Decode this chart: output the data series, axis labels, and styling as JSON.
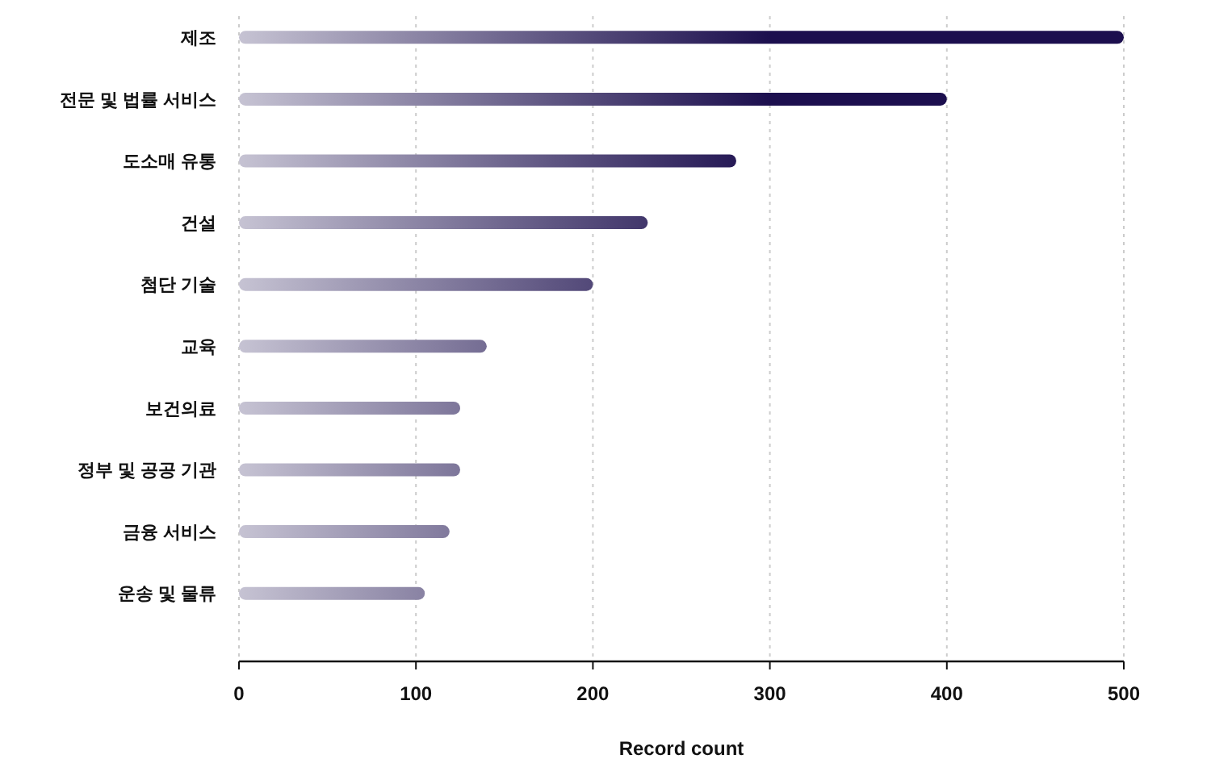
{
  "chart_data": {
    "type": "bar",
    "orientation": "horizontal",
    "categories": [
      "제조",
      "전문 및 법률 서비스",
      "도소매 유통",
      "건설",
      "첨단 기술",
      "교육",
      "보건의료",
      "정부 및 공공 기관",
      "금융 서비스",
      "운송 및 물류"
    ],
    "values": [
      500,
      400,
      281,
      231,
      200,
      140,
      125,
      125,
      119,
      105
    ],
    "color": "#1c0f4e",
    "xlim": [
      0,
      500
    ],
    "xticks": [
      0,
      100,
      200,
      300,
      400,
      500
    ],
    "xlabel": "Record count",
    "grid": "x"
  }
}
